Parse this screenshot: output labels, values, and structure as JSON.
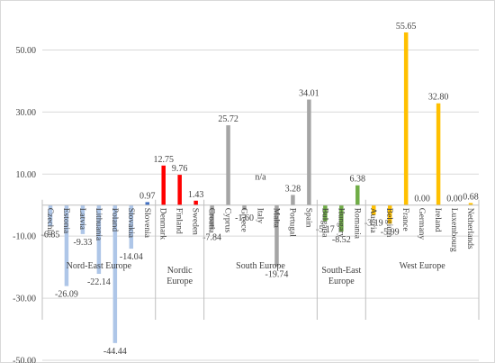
{
  "chart_data": {
    "type": "bar",
    "title": "",
    "xlabel": "",
    "ylabel": "",
    "ylim": [
      -50,
      60
    ],
    "yticks": [
      -50.0,
      -30.0,
      -10.0,
      10.0,
      30.0,
      50.0
    ],
    "ytick_labels": [
      "-50.00",
      "-30.00",
      "-10.00",
      "10.00",
      "30.00",
      "50.00"
    ],
    "grid": true,
    "legend": "none",
    "groups": [
      {
        "name": "Nord-East Europe",
        "color": "#aec6e8",
        "bars": [
          {
            "category": "Czechia",
            "value": -6.85,
            "label": "-6.85"
          },
          {
            "category": "Estonia",
            "value": -26.09,
            "label": "-26.09"
          },
          {
            "category": "Latvia",
            "value": -9.33,
            "label": "-9.33"
          },
          {
            "category": "Lithuania",
            "value": -22.14,
            "label": "-22.14"
          },
          {
            "category": "Poland",
            "value": -44.44,
            "label": "-44.44"
          },
          {
            "category": "Slovakia",
            "value": -14.04,
            "label": "-14.04"
          },
          {
            "category": "Slovenia",
            "value": 0.97,
            "label": "0.97",
            "color": "#4472c4"
          }
        ]
      },
      {
        "name": "Nordic Europe",
        "color": "#ff0000",
        "bars": [
          {
            "category": "Denmark",
            "value": 12.75,
            "label": "12.75"
          },
          {
            "category": "Finland",
            "value": 9.76,
            "label": "9.76"
          },
          {
            "category": "Sweden",
            "value": 1.43,
            "label": "1.43"
          }
        ]
      },
      {
        "name": "South Europe",
        "color": "#a5a5a5",
        "bars": [
          {
            "category": "Croatia",
            "value": -7.84,
            "label": "-7.84"
          },
          {
            "category": "Cyprus",
            "value": 25.72,
            "label": "25.72"
          },
          {
            "category": "Greece",
            "value": -1.6,
            "label": "-1.60"
          },
          {
            "category": "Italy",
            "value": null,
            "label": "n/a"
          },
          {
            "category": "Malta",
            "value": -19.74,
            "label": "-19.74"
          },
          {
            "category": "Portugal",
            "value": 3.28,
            "label": "3.28"
          },
          {
            "category": "Spain",
            "value": 34.01,
            "label": "34.01"
          }
        ]
      },
      {
        "name": "South-East Europe",
        "color": "#70ad47",
        "bars": [
          {
            "category": "Bulgaria",
            "value": -5.17,
            "label": "-5.17"
          },
          {
            "category": "Hungary",
            "value": -8.52,
            "label": "-8.52"
          },
          {
            "category": "Romania",
            "value": 6.38,
            "label": "6.38"
          }
        ]
      },
      {
        "name": "West Europe",
        "color": "#ffc000",
        "bars": [
          {
            "category": "Austria",
            "value": -3.19,
            "label": "-3.19"
          },
          {
            "category": "Belgium",
            "value": -5.99,
            "label": "-5.99"
          },
          {
            "category": "France",
            "value": 55.65,
            "label": "55.65"
          },
          {
            "category": "Germany",
            "value": 0.0,
            "label": "0.00"
          },
          {
            "category": "Ireland",
            "value": 32.8,
            "label": "32.80"
          },
          {
            "category": "Luxembourg",
            "value": 0.0,
            "label": "0.00"
          },
          {
            "category": "Netherlands",
            "value": 0.68,
            "label": "0.68"
          }
        ]
      }
    ]
  }
}
